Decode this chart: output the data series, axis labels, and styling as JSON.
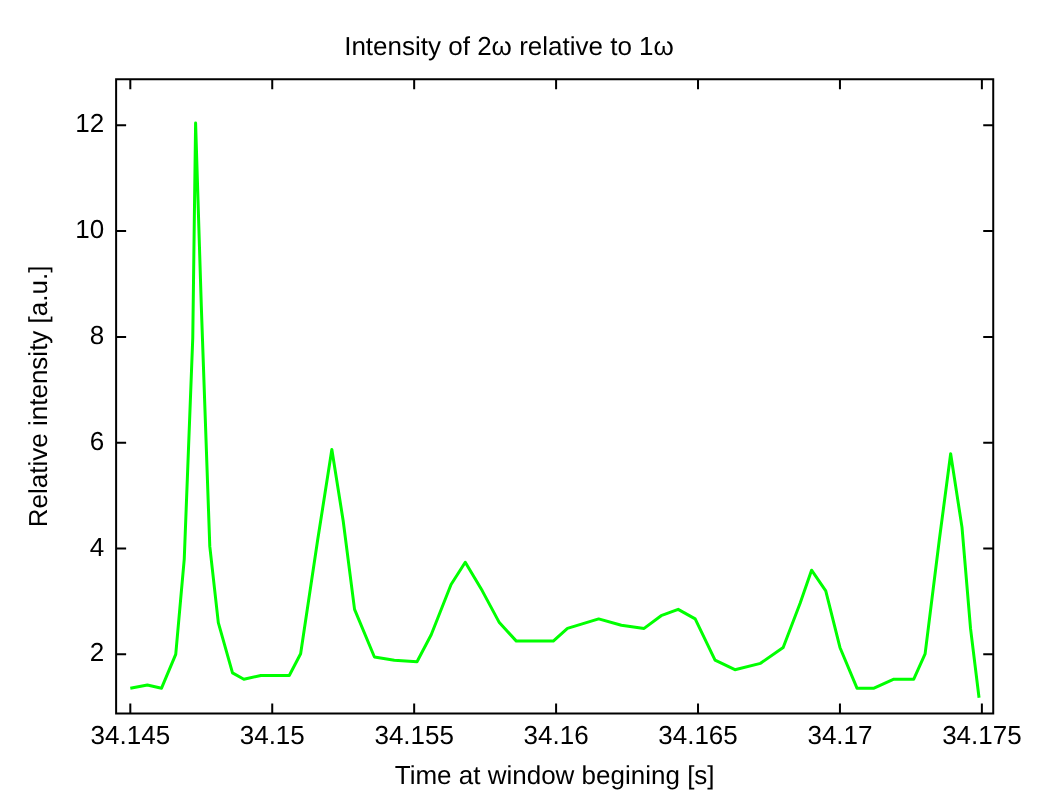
{
  "chart_data": {
    "type": "line",
    "title": "Intensity of 2ω relative to 1ω",
    "xlabel": "Time at window begining [s]",
    "ylabel": "Relative intensity [a.u.]",
    "x": [
      34.145,
      34.1456,
      34.1461,
      34.1466,
      34.1469,
      34.1472,
      34.1473,
      34.1475,
      34.1478,
      34.1481,
      34.1486,
      34.149,
      34.1496,
      34.1506,
      34.151,
      34.1516,
      34.1521,
      34.1525,
      34.1529,
      34.1536,
      34.1543,
      34.1551,
      34.1556,
      34.1563,
      34.1568,
      34.1574,
      34.158,
      34.1586,
      34.1599,
      34.1604,
      34.1615,
      34.1623,
      34.1631,
      34.1637,
      34.1643,
      34.1649,
      34.1656,
      34.1663,
      34.1672,
      34.168,
      34.1686,
      34.169,
      34.1695,
      34.17,
      34.1706,
      34.1712,
      34.1719,
      34.1726,
      34.173,
      34.1735,
      34.1739,
      34.1743,
      34.1746,
      34.1749
    ],
    "series": [
      {
        "color": "#00ff00",
        "values": [
          1.36,
          1.42,
          1.36,
          2.0,
          3.8,
          7.98,
          12.04,
          8.6,
          4.04,
          2.6,
          1.65,
          1.53,
          1.6,
          1.6,
          2.01,
          4.16,
          5.87,
          4.52,
          2.85,
          1.95,
          1.89,
          1.86,
          2.37,
          3.32,
          3.74,
          3.2,
          2.6,
          2.25,
          2.25,
          2.49,
          2.67,
          2.55,
          2.49,
          2.73,
          2.85,
          2.67,
          1.89,
          1.71,
          1.83,
          2.13,
          2.97,
          3.59,
          3.2,
          2.13,
          1.36,
          1.36,
          1.53,
          1.53,
          2.01,
          4.16,
          5.79,
          4.4,
          2.49,
          1.18
        ]
      }
    ],
    "xlim": [
      34.1445,
      34.1754
    ],
    "xticks": [
      34.145,
      34.15,
      34.155,
      34.16,
      34.165,
      34.17,
      34.175
    ],
    "ylim": [
      0.88,
      12.87
    ],
    "yticks": [
      2,
      4,
      6,
      8,
      10,
      12
    ],
    "grid": false,
    "legend": false,
    "marker": "none",
    "line_style": "solid"
  }
}
